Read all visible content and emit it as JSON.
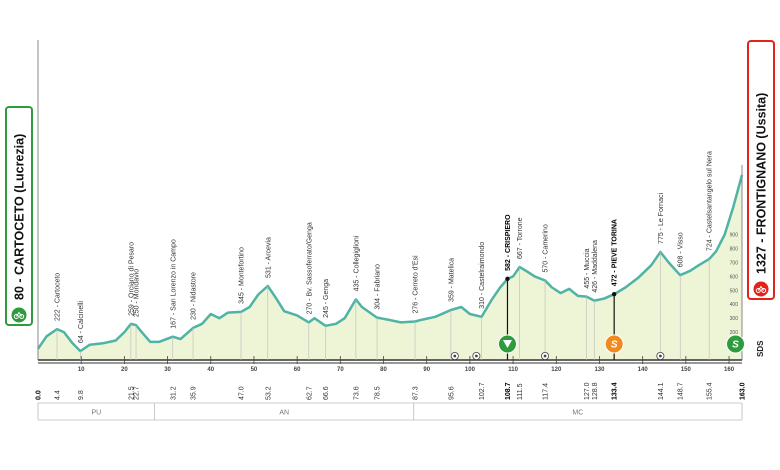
{
  "start": {
    "label": "80 - CARTOCETO (Lucrezia)",
    "color": "#2e9b3e"
  },
  "finish": {
    "label": "1327 - FRONTIGNANO (Ussita)",
    "color": "#e2231a"
  },
  "colors": {
    "profile_fill": "#eef4d6",
    "profile_line": "#4fb3a5",
    "axis": "#555555",
    "grid": "#cccccc"
  },
  "y_axis_ticks": [
    "100",
    "200",
    "300",
    "400",
    "500",
    "600",
    "700",
    "800",
    "900"
  ],
  "brand": "SDS",
  "regions": [
    {
      "name": "PU",
      "from": 0,
      "to": 27
    },
    {
      "name": "AN",
      "from": 27,
      "to": 87
    },
    {
      "name": "MC",
      "from": 87,
      "to": 163
    }
  ],
  "x_ticks": [
    "10",
    "20",
    "30",
    "40",
    "50",
    "60",
    "70",
    "80",
    "90",
    "100",
    "110",
    "120",
    "130",
    "140",
    "150",
    "160"
  ],
  "km_labels": [
    {
      "km": 0,
      "text": "0.0",
      "bold": true
    },
    {
      "km": 4.4,
      "text": "4.4"
    },
    {
      "km": 9.8,
      "text": "9.8"
    },
    {
      "km": 21.5,
      "text": "21.5"
    },
    {
      "km": 22.7,
      "text": "22.7"
    },
    {
      "km": 31.2,
      "text": "31.2"
    },
    {
      "km": 35.9,
      "text": "35.9"
    },
    {
      "km": 47.0,
      "text": "47.0"
    },
    {
      "km": 53.2,
      "text": "53.2"
    },
    {
      "km": 62.7,
      "text": "62.7"
    },
    {
      "km": 66.6,
      "text": "66.6"
    },
    {
      "km": 73.6,
      "text": "73.6"
    },
    {
      "km": 78.5,
      "text": "78.5"
    },
    {
      "km": 87.3,
      "text": "87.3"
    },
    {
      "km": 95.6,
      "text": "95.6"
    },
    {
      "km": 102.7,
      "text": "102.7"
    },
    {
      "km": 108.7,
      "text": "108.7",
      "bold": true
    },
    {
      "km": 111.5,
      "text": "111.5"
    },
    {
      "km": 117.4,
      "text": "117.4"
    },
    {
      "km": 127.0,
      "text": "127.0"
    },
    {
      "km": 128.8,
      "text": "128.8"
    },
    {
      "km": 133.4,
      "text": "133.4",
      "bold": true
    },
    {
      "km": 144.1,
      "text": "144.1"
    },
    {
      "km": 148.7,
      "text": "148.7"
    },
    {
      "km": 155.4,
      "text": "155.4"
    },
    {
      "km": 163.0,
      "text": "163.0",
      "bold": true
    }
  ],
  "places": [
    {
      "km": 4.4,
      "text": "222 - Cartoceto",
      "alt": 222
    },
    {
      "km": 9.8,
      "text": "64 - Calcinelli",
      "alt": 64
    },
    {
      "km": 21.5,
      "text": "259 - Orciano di Pesaro",
      "alt": 259
    },
    {
      "km": 22.7,
      "text": "250 - Mondavio",
      "alt": 250
    },
    {
      "km": 31.2,
      "text": "167 - San Lorenzo in Campo",
      "alt": 167
    },
    {
      "km": 35.9,
      "text": "230 - Nidastore",
      "alt": 230
    },
    {
      "km": 47.0,
      "text": "345 - Montefortino",
      "alt": 345
    },
    {
      "km": 53.2,
      "text": "531 - Arcevia",
      "alt": 531
    },
    {
      "km": 62.7,
      "text": "270 - Bv. Sassoferrato/Genga",
      "alt": 270
    },
    {
      "km": 66.6,
      "text": "245 - Genga",
      "alt": 245
    },
    {
      "km": 73.6,
      "text": "435 - Collegiglioni",
      "alt": 435
    },
    {
      "km": 78.5,
      "text": "304 - Fabriano",
      "alt": 304
    },
    {
      "km": 87.3,
      "text": "276 - Cerreto d'Esi",
      "alt": 276
    },
    {
      "km": 95.6,
      "text": "359 - Matelica",
      "alt": 359
    },
    {
      "km": 102.7,
      "text": "310 - Castelraimondo",
      "alt": 310
    },
    {
      "km": 108.7,
      "text": "582 - CRISPIERO",
      "alt": 582,
      "bold": true
    },
    {
      "km": 111.5,
      "text": "667 - Torrone",
      "alt": 667
    },
    {
      "km": 117.4,
      "text": "570 - Camerino",
      "alt": 570
    },
    {
      "km": 127.0,
      "text": "455 - Muccia",
      "alt": 455
    },
    {
      "km": 128.8,
      "text": "426 - Maddalena",
      "alt": 426
    },
    {
      "km": 133.4,
      "text": "472 - PIEVE TORINA",
      "alt": 472,
      "bold": true
    },
    {
      "km": 144.1,
      "text": "775 - Le Fornaci",
      "alt": 775
    },
    {
      "km": 148.7,
      "text": "608 - Visso",
      "alt": 608
    },
    {
      "km": 155.4,
      "text": "724 - Castelsantangelo sul Nera",
      "alt": 724
    }
  ],
  "markers": [
    {
      "km": 108.7,
      "kind": "gpm",
      "glyph": "▼",
      "color": "#2e9b3e"
    },
    {
      "km": 133.4,
      "kind": "sprint",
      "glyph": "S",
      "color": "#f08a1e"
    },
    {
      "km": 161.5,
      "kind": "finish-gpm",
      "glyph": "S",
      "color": "#2e9b3e"
    }
  ],
  "small_icons": [
    96.5,
    101.5,
    117.4,
    144.1
  ],
  "chart_data": {
    "type": "area",
    "x": [
      0,
      2,
      4.4,
      6,
      8,
      9.8,
      12,
      15,
      18,
      20,
      21.5,
      22.7,
      24,
      26,
      28,
      31.2,
      33,
      35.9,
      38,
      40,
      42,
      44,
      47,
      49,
      51,
      53.2,
      55,
      57,
      60,
      62.7,
      64,
      66.6,
      69,
      71,
      73.6,
      75,
      78.5,
      81,
      84,
      87.3,
      89,
      92,
      95.6,
      98,
      100,
      102.7,
      105,
      107,
      108.7,
      110,
      111.5,
      113,
      115,
      117.4,
      119,
      121,
      123,
      125,
      127,
      128.8,
      131,
      133.4,
      136,
      139,
      142,
      144.1,
      146,
      148.7,
      151,
      153,
      155.4,
      157,
      159,
      161,
      163
    ],
    "y": [
      80,
      170,
      222,
      200,
      120,
      64,
      110,
      120,
      140,
      200,
      259,
      250,
      200,
      130,
      130,
      167,
      150,
      230,
      260,
      330,
      300,
      340,
      345,
      380,
      470,
      531,
      450,
      350,
      320,
      270,
      300,
      245,
      260,
      300,
      435,
      380,
      304,
      290,
      270,
      276,
      290,
      310,
      359,
      380,
      330,
      310,
      430,
      520,
      582,
      600,
      667,
      640,
      600,
      570,
      520,
      480,
      510,
      460,
      455,
      426,
      440,
      472,
      520,
      590,
      680,
      775,
      700,
      608,
      640,
      680,
      724,
      780,
      900,
      1100,
      1327
    ],
    "xlabel": "",
    "ylabel": "",
    "xlim": [
      0,
      163
    ],
    "ylim": [
      0,
      1327
    ]
  }
}
